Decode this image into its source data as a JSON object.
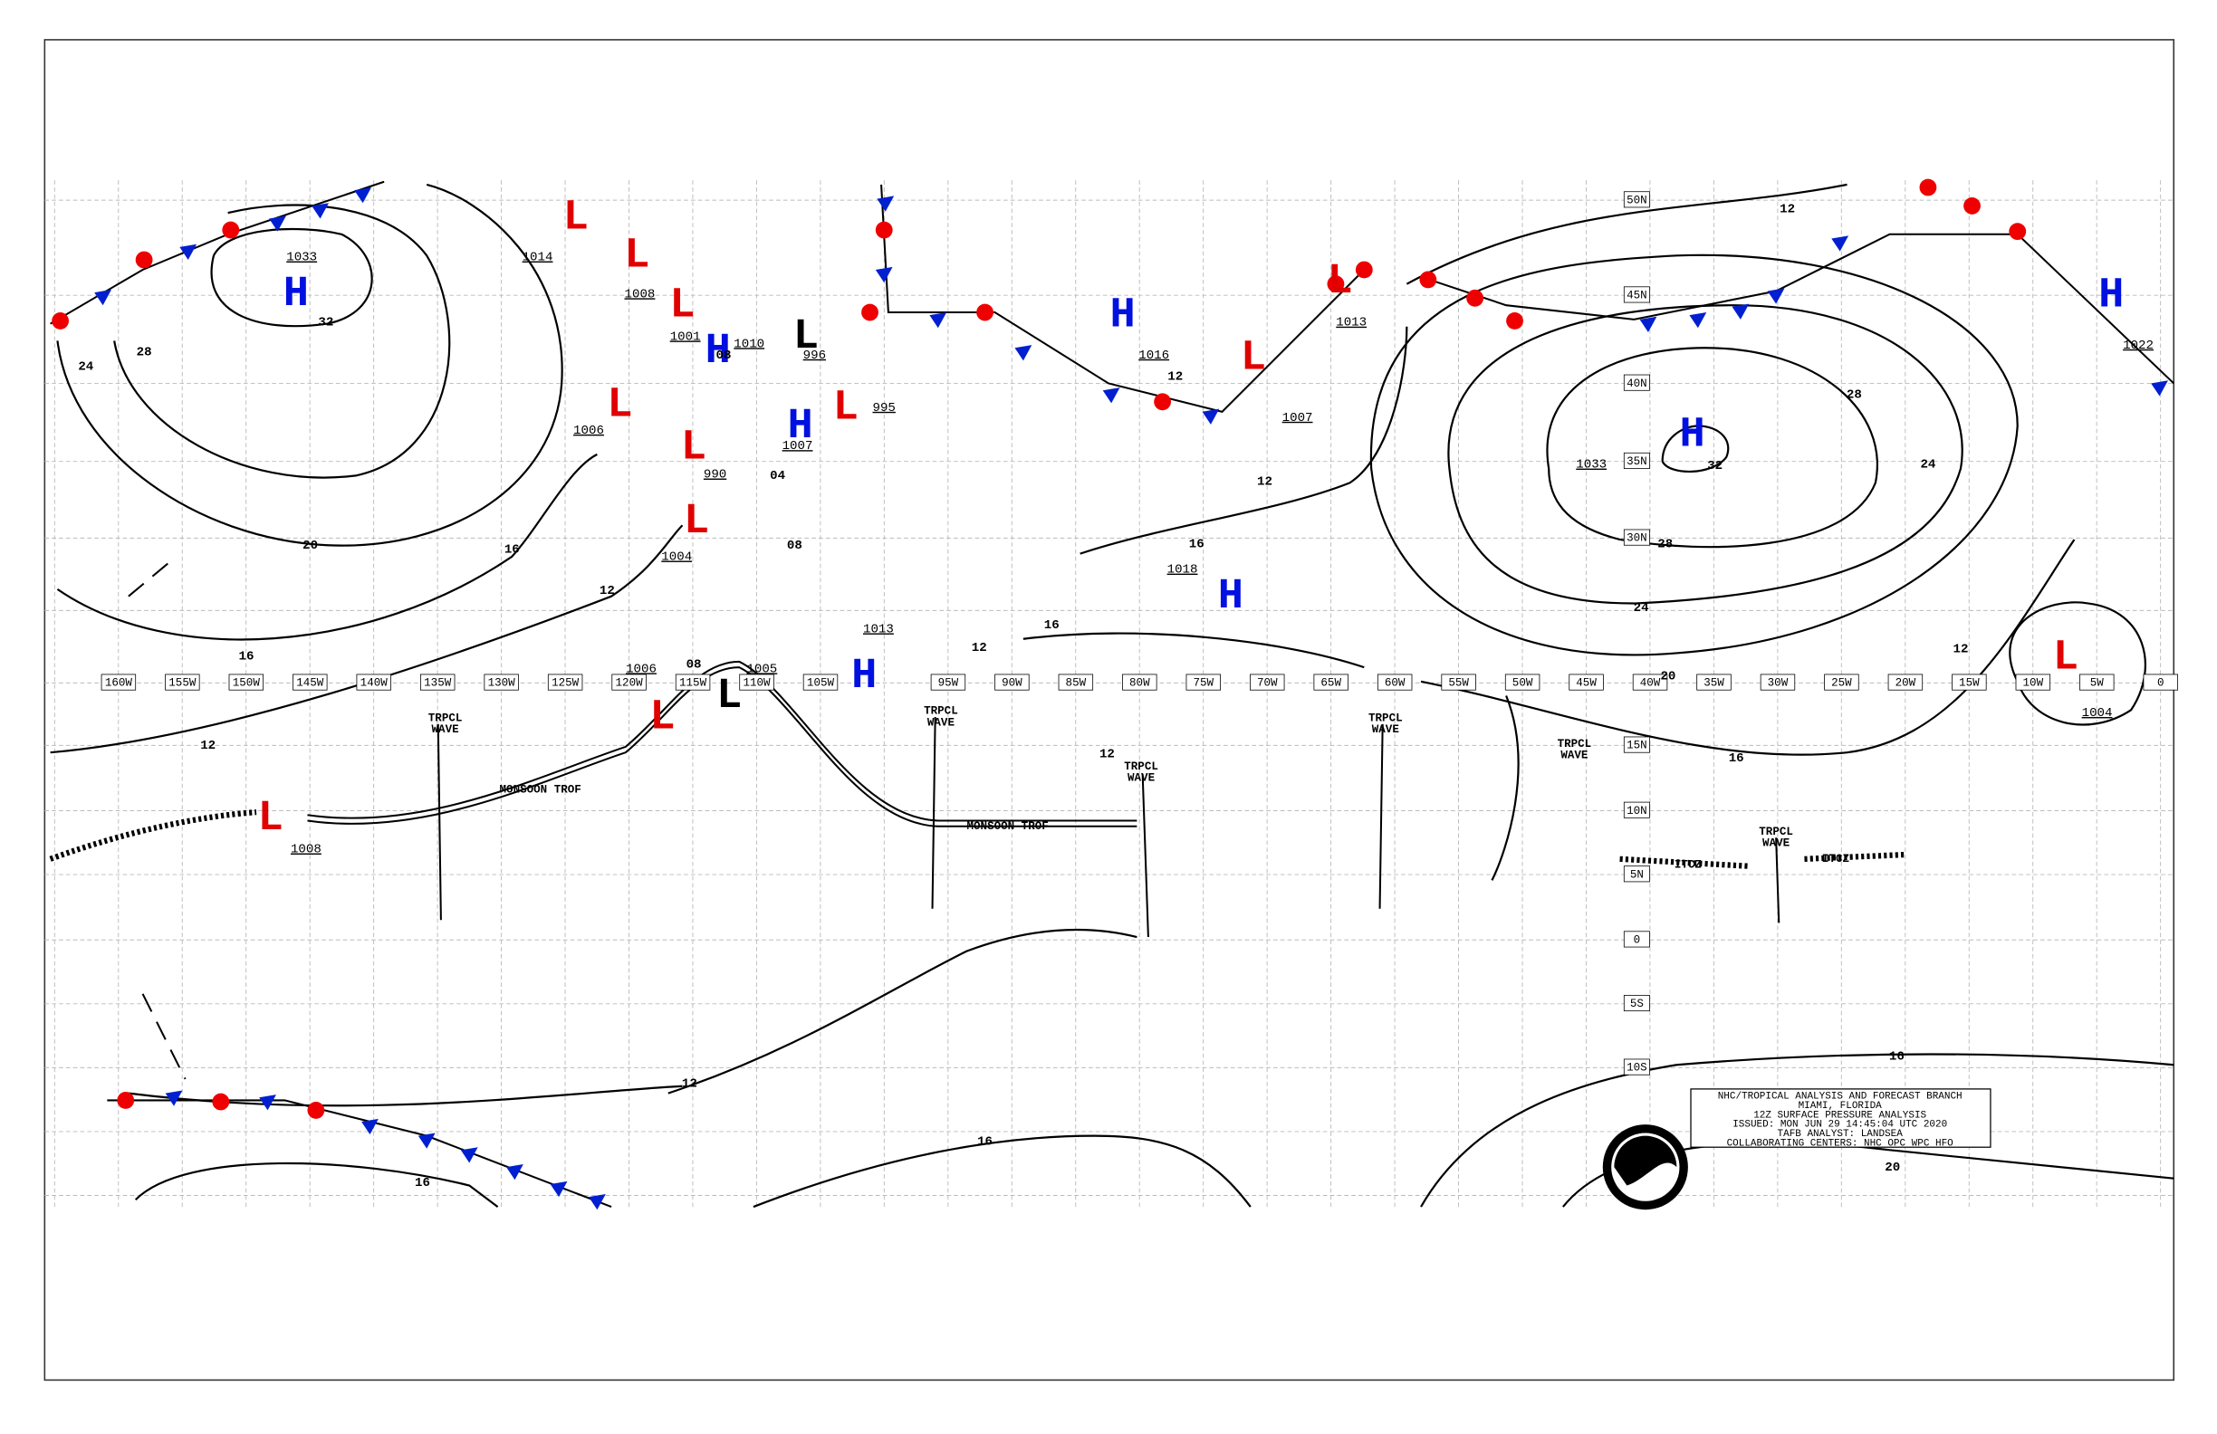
{
  "map": {
    "lon_labels": [
      "160W",
      "155W",
      "150W",
      "145W",
      "140W",
      "135W",
      "130W",
      "125W",
      "120W",
      "115W",
      "110W",
      "105W",
      "95W",
      "90W",
      "85W",
      "80W",
      "75W",
      "70W",
      "65W",
      "60W",
      "55W",
      "50W",
      "45W",
      "40W",
      "35W",
      "30W",
      "25W",
      "20W",
      "15W",
      "10W",
      "5W",
      "0"
    ],
    "lat_labels": [
      "50N",
      "45N",
      "40N",
      "35N",
      "30N",
      "15N",
      "10N",
      "5N",
      "0",
      "5S",
      "10S"
    ],
    "centers": [
      {
        "letter": "H",
        "pressure": "1033"
      },
      {
        "letter": "L",
        "pressure": "1014"
      },
      {
        "letter": "L",
        "pressure": "1008"
      },
      {
        "letter": "L",
        "pressure": "1001"
      },
      {
        "letter": "H",
        "pressure": "1010"
      },
      {
        "letter": "L",
        "pressure": "996"
      },
      {
        "letter": "L",
        "pressure": "1006"
      },
      {
        "letter": "L",
        "pressure": "990"
      },
      {
        "letter": "H",
        "pressure": "1007"
      },
      {
        "letter": "L",
        "pressure": "995"
      },
      {
        "letter": "L",
        "pressure": "1004"
      },
      {
        "letter": "H",
        "pressure": "1013"
      },
      {
        "letter": "L",
        "pressure": "1006"
      },
      {
        "letter": "L",
        "pressure": "1005"
      },
      {
        "letter": "L",
        "pressure": "1008"
      },
      {
        "letter": "H",
        "pressure": "1016"
      },
      {
        "letter": "L",
        "pressure": "1013"
      },
      {
        "letter": "H",
        "pressure": "1018"
      },
      {
        "letter": "H",
        "pressure": "1033"
      },
      {
        "letter": "H",
        "pressure": "1022"
      },
      {
        "letter": "L",
        "pressure": "1004"
      },
      {
        "letter": "L",
        "pressure": "1007"
      }
    ],
    "isobar_labels": [
      "24",
      "28",
      "32",
      "20",
      "16",
      "12",
      "16",
      "12",
      "08",
      "12",
      "16",
      "16",
      "12",
      "12",
      "24",
      "28",
      "32",
      "28",
      "24",
      "20",
      "16",
      "12",
      "12",
      "12",
      "16",
      "16",
      "16",
      "20",
      "08",
      "04",
      "08",
      "12"
    ],
    "features": [
      "TRPCL\nWAVE",
      "TRPCL\nWAVE",
      "TRPCL\nWAVE",
      "TRPCL\nWAVE",
      "TRPCL\nWAVE",
      "TRPCL\nWAVE",
      "MONSOON TROF",
      "MONSOON TROF",
      "ITCZ",
      "ITCZ"
    ],
    "info_box": [
      "NHC/TROPICAL ANALYSIS AND FORECAST BRANCH",
      "MIAMI, FLORIDA",
      "12Z SURFACE PRESSURE ANALYSIS",
      "ISSUED: MON JUN 29 14:45:04 UTC 2020",
      "TAFB ANALYST: LANDSEA",
      "COLLABORATING CENTERS: NHC OPC WPC HFO"
    ],
    "logo": "NOAA"
  }
}
